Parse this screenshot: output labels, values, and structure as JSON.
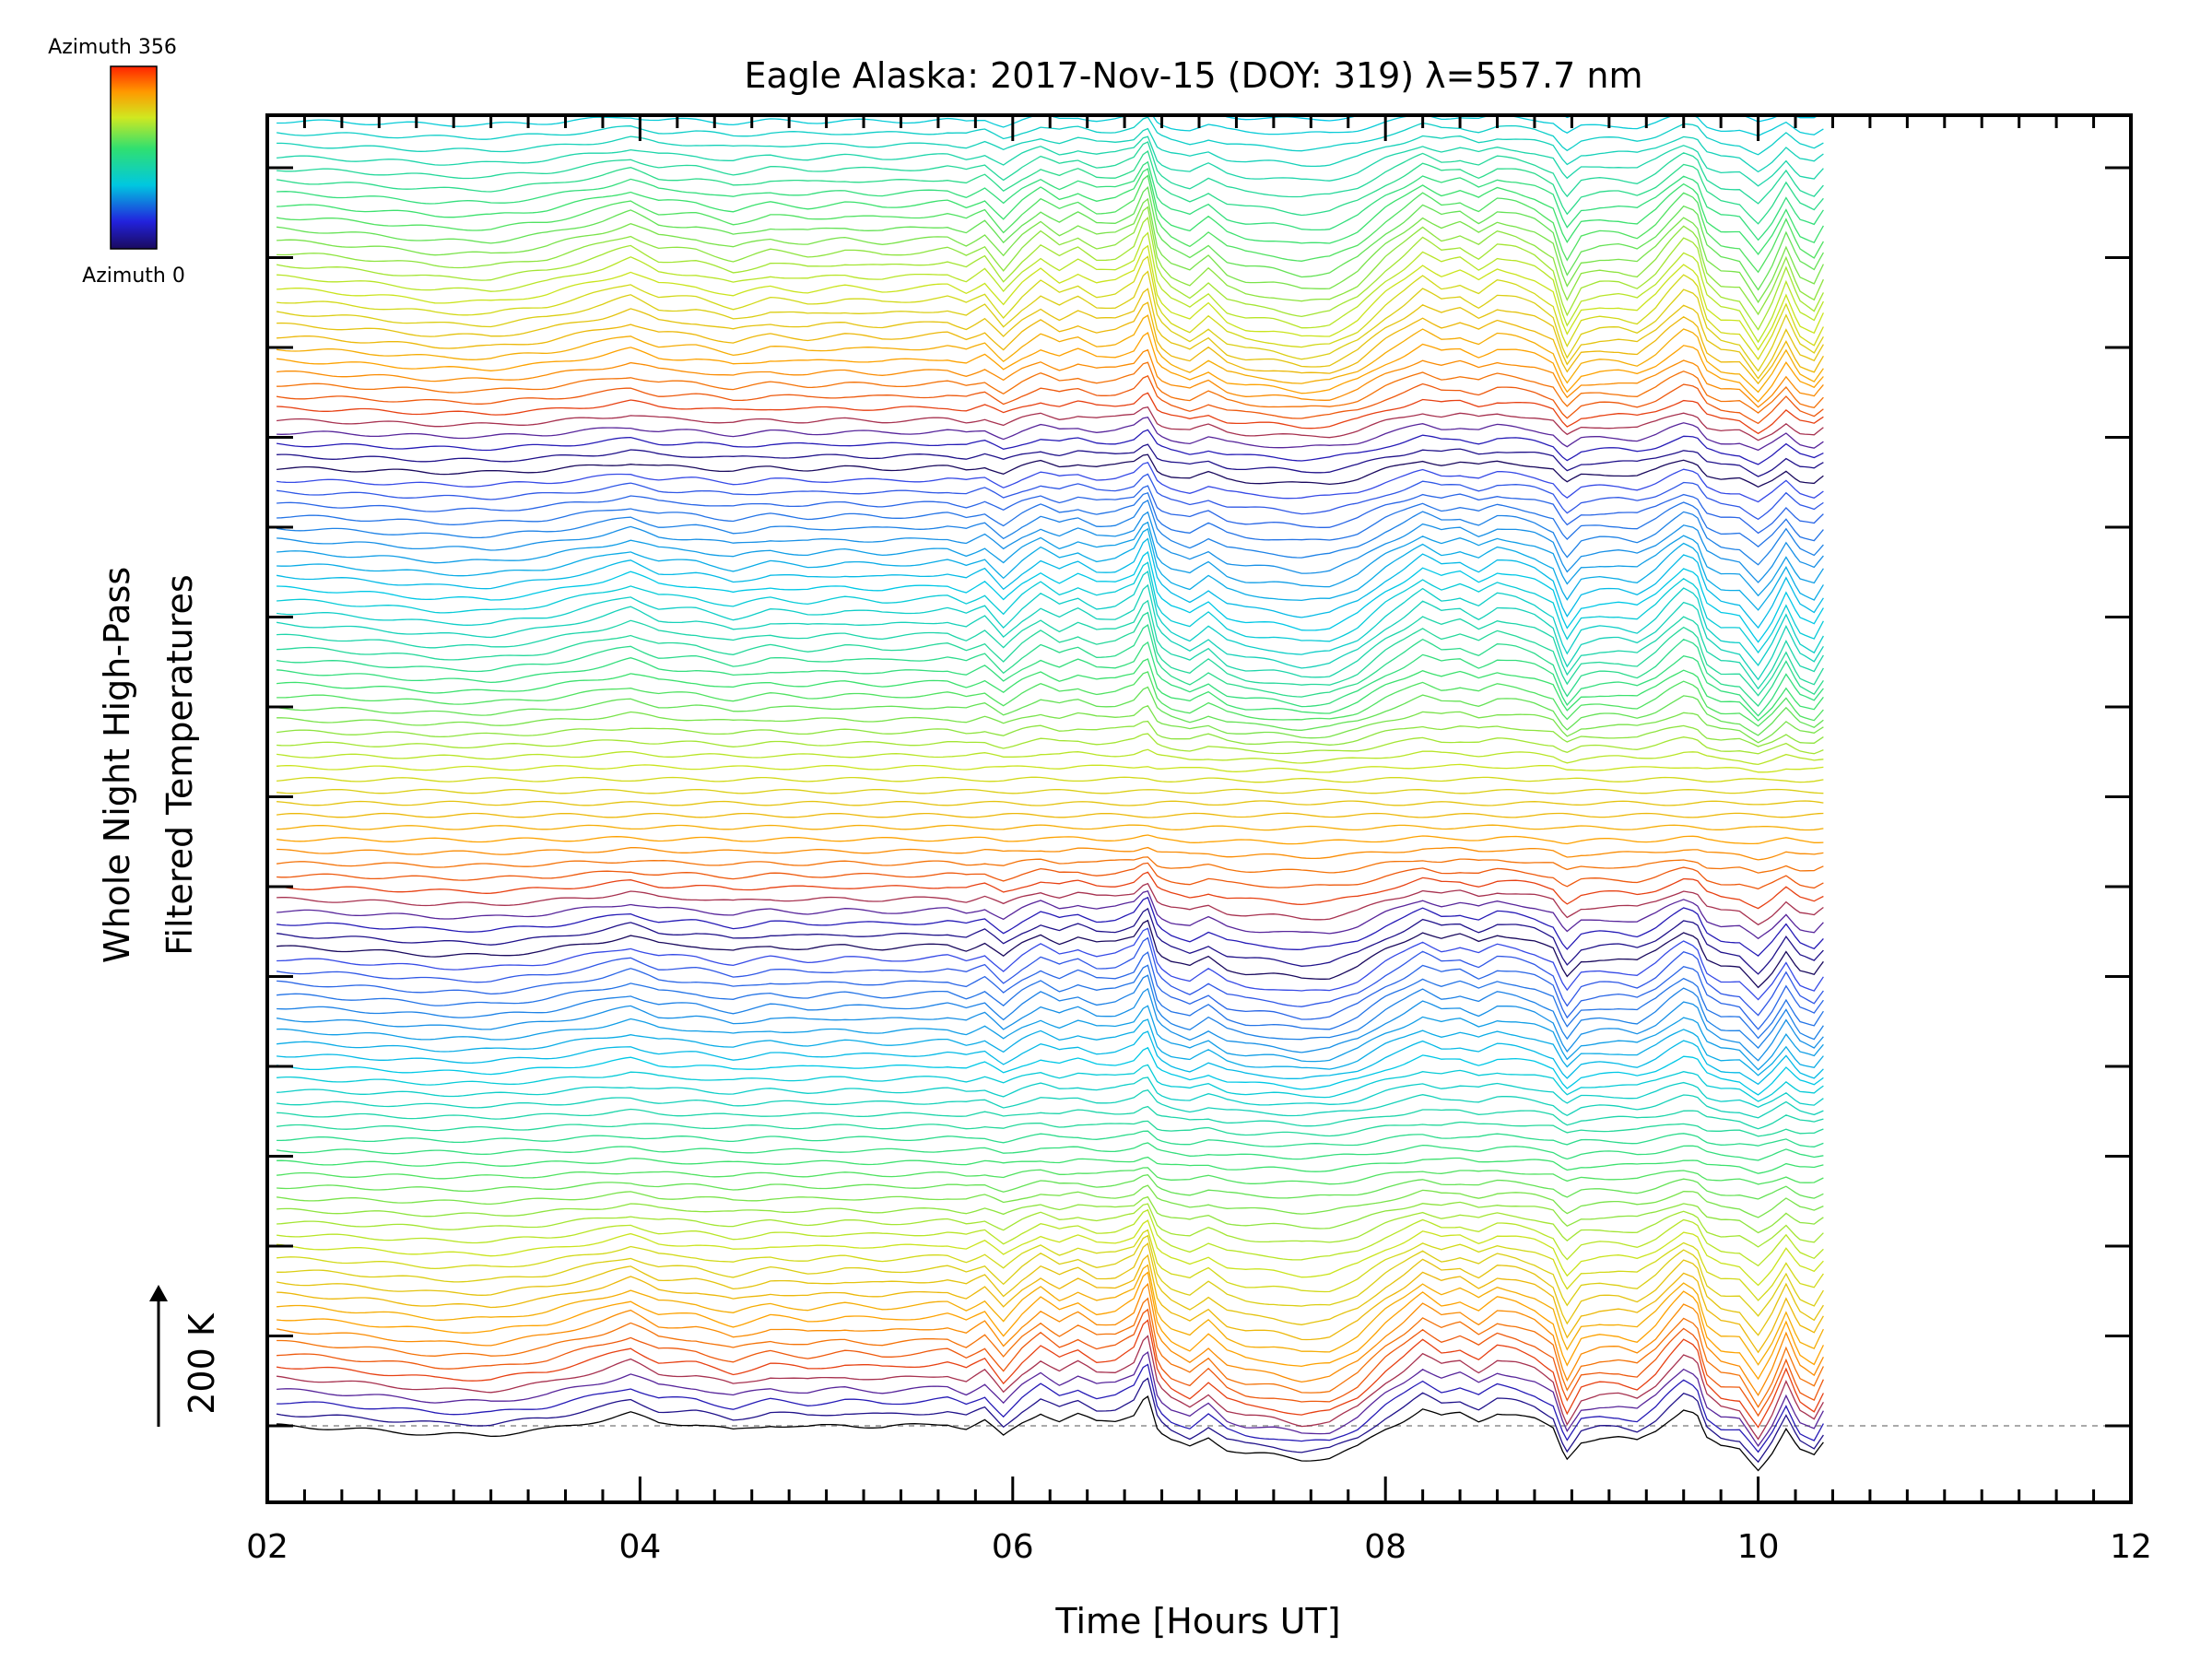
{
  "chart_data": {
    "type": "line",
    "title": "Eagle Alaska: 2017-Nov-15 (DOY: 319) λ=557.7 nm",
    "xlabel": "Time [Hours UT]",
    "ylabel_lines": [
      "Whole Night High-Pass",
      "Filtered Temperatures"
    ],
    "scale_label": "200 K",
    "xlim": [
      2,
      12
    ],
    "xticks": [
      "02",
      "04",
      "06",
      "08",
      "10",
      "12"
    ],
    "grid": false,
    "colorbar": {
      "top_label": "Azimuth 356",
      "bottom_label": "Azimuth 0",
      "colormap": "rainbow"
    },
    "profile": {
      "x": [
        2.05,
        2.3,
        2.6,
        2.9,
        3.2,
        3.5,
        3.8,
        3.95,
        4.1,
        4.3,
        4.5,
        4.7,
        4.9,
        5.1,
        5.3,
        5.5,
        5.65,
        5.75,
        5.85,
        5.95,
        6.05,
        6.15,
        6.25,
        6.35,
        6.45,
        6.55,
        6.65,
        6.72,
        6.78,
        6.85,
        6.95,
        7.05,
        7.15,
        7.25,
        7.4,
        7.55,
        7.7,
        7.85,
        8.0,
        8.1,
        8.2,
        8.3,
        8.4,
        8.5,
        8.6,
        8.7,
        8.8,
        8.9,
        8.97,
        9.05,
        9.15,
        9.25,
        9.35,
        9.45,
        9.52,
        9.6,
        9.67,
        9.72,
        9.8,
        9.9,
        10.0,
        10.07,
        10.15,
        10.22,
        10.3,
        10.37
      ],
      "y": [
        0,
        -3,
        -8,
        -14,
        -15,
        -6,
        10,
        20,
        5,
        3,
        -8,
        2,
        -3,
        2,
        -2,
        1,
        4,
        -4,
        8,
        -18,
        5,
        22,
        8,
        18,
        6,
        8,
        20,
        55,
        -10,
        -25,
        -35,
        -18,
        -38,
        -45,
        -48,
        -55,
        -52,
        -35,
        -5,
        10,
        28,
        15,
        20,
        8,
        22,
        18,
        10,
        -5,
        -55,
        -25,
        -20,
        -20,
        -25,
        -8,
        10,
        28,
        20,
        -20,
        -35,
        -38,
        -70,
        -45,
        -5,
        -40,
        -50,
        -20
      ]
    },
    "stack": {
      "n_traces": 200,
      "base_temperature": 0,
      "trace_spacing": 13,
      "end_hour": 10.37,
      "azimuth_min": 0,
      "azimuth_max": 356
    }
  }
}
